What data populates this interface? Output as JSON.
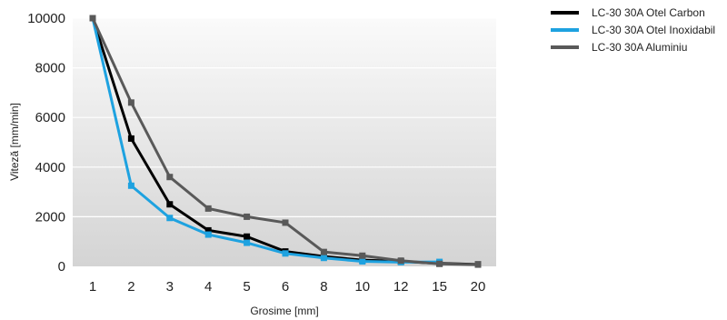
{
  "chart_data": {
    "type": "line",
    "xlabel": "Grosime [mm]",
    "ylabel": "Viteză [mm/min]",
    "categories": [
      "1",
      "2",
      "3",
      "4",
      "5",
      "6",
      "8",
      "10",
      "12",
      "15",
      "20"
    ],
    "ylim": [
      0,
      10000
    ],
    "yticks": [
      0,
      2000,
      4000,
      6000,
      8000,
      10000
    ],
    "grid": true,
    "legend": "top-right",
    "series": [
      {
        "name": "LC-30  30A Otel Carbon",
        "color": "#000000",
        "values": [
          10000,
          5150,
          2500,
          1450,
          1200,
          600,
          400,
          250,
          200,
          120,
          80
        ]
      },
      {
        "name": "LC-30  30A Otel Inoxidabil",
        "color": "#1ea2e0",
        "values": [
          10000,
          3250,
          1950,
          1280,
          950,
          520,
          340,
          200,
          170,
          180,
          null
        ]
      },
      {
        "name": "LC-30  30A Aluminiu",
        "color": "#595959",
        "values": [
          10000,
          6600,
          3600,
          2330,
          2000,
          1760,
          580,
          430,
          230,
          100,
          70
        ]
      }
    ]
  }
}
